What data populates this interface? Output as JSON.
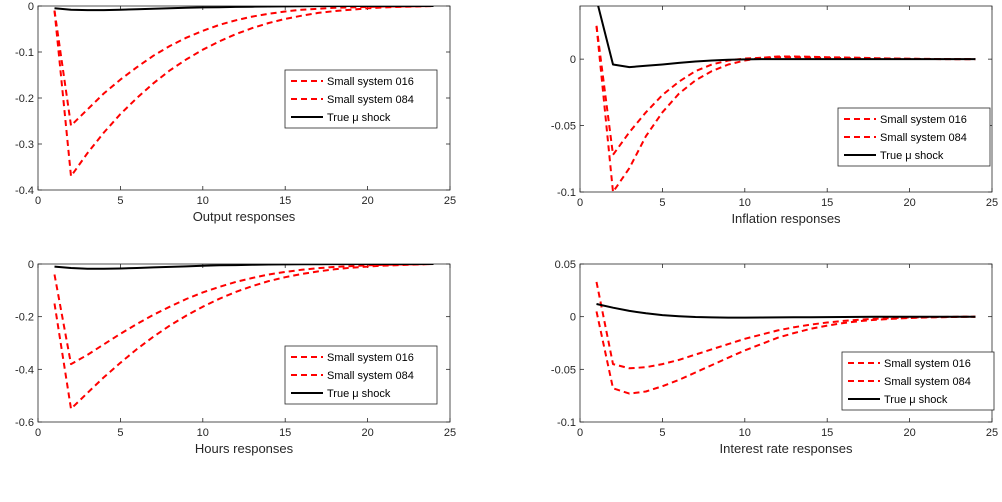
{
  "colors": {
    "red_dashed": "#ff0000",
    "black": "#000000",
    "axis": "#262626"
  },
  "chart_data": [
    {
      "type": "line",
      "xlabel": "Output responses",
      "xlim": [
        0,
        25
      ],
      "ylim": [
        -0.4,
        0
      ],
      "xticks": [
        "0",
        "5",
        "10",
        "15",
        "20",
        "25"
      ],
      "yticks": [
        "-0.4",
        "-0.3",
        "-0.2",
        "-0.1",
        "0"
      ],
      "grid": false,
      "legend_position": "middle-right",
      "series": [
        {
          "name": "Small system 016",
          "style": "dashed",
          "color": "#ff0000",
          "x": [
            1,
            2,
            3,
            4,
            5,
            6,
            7,
            8,
            9,
            10,
            11,
            12,
            13,
            14,
            15,
            16,
            17,
            18,
            19,
            20,
            21,
            22,
            23,
            24
          ],
          "y": [
            -0.01,
            -0.26,
            -0.225,
            -0.19,
            -0.16,
            -0.133,
            -0.108,
            -0.087,
            -0.069,
            -0.054,
            -0.041,
            -0.031,
            -0.023,
            -0.017,
            -0.012,
            -0.008,
            -0.006,
            -0.004,
            -0.003,
            -0.002,
            -0.001,
            -0.001,
            -0.0005,
            0
          ]
        },
        {
          "name": "Small system 084",
          "style": "dashed",
          "color": "#ff0000",
          "x": [
            1,
            2,
            3,
            4,
            5,
            6,
            7,
            8,
            9,
            10,
            11,
            12,
            13,
            14,
            15,
            16,
            17,
            18,
            19,
            20,
            21,
            22,
            23,
            24
          ],
          "y": [
            -0.01,
            -0.37,
            -0.32,
            -0.275,
            -0.235,
            -0.2,
            -0.168,
            -0.14,
            -0.116,
            -0.095,
            -0.077,
            -0.061,
            -0.048,
            -0.037,
            -0.028,
            -0.021,
            -0.015,
            -0.011,
            -0.008,
            -0.005,
            -0.003,
            -0.002,
            -0.001,
            0
          ]
        },
        {
          "name": "True μ shock",
          "style": "solid",
          "color": "#000000",
          "x": [
            1,
            2,
            3,
            4,
            5,
            6,
            7,
            8,
            9,
            10,
            11,
            12,
            13,
            14,
            15,
            16,
            17,
            18,
            19,
            20,
            21,
            22,
            23,
            24
          ],
          "y": [
            -0.005,
            -0.008,
            -0.009,
            -0.009,
            -0.008,
            -0.007,
            -0.006,
            -0.005,
            -0.004,
            -0.003,
            -0.0025,
            -0.002,
            -0.0015,
            -0.001,
            -0.0008,
            -0.0005,
            -0.0003,
            -0.0002,
            -0.0001,
            0,
            0,
            0,
            0,
            0
          ]
        }
      ]
    },
    {
      "type": "line",
      "xlabel": "Inflation responses",
      "xlim": [
        0,
        25
      ],
      "ylim": [
        -0.1,
        0.04
      ],
      "xticks": [
        "0",
        "5",
        "10",
        "15",
        "20",
        "25"
      ],
      "yticks": [
        "-0.1",
        "-0.05",
        "0"
      ],
      "grid": false,
      "legend_position": "middle-right",
      "series": [
        {
          "name": "Small system 016",
          "style": "dashed",
          "color": "#ff0000",
          "x": [
            1,
            2,
            3,
            4,
            5,
            6,
            7,
            8,
            9,
            10,
            11,
            12,
            13,
            14,
            15,
            16,
            17,
            18,
            19,
            20,
            21,
            22,
            23,
            24
          ],
          "y": [
            0.025,
            -0.072,
            -0.055,
            -0.04,
            -0.027,
            -0.017,
            -0.009,
            -0.004,
            -0.001,
            0.0005,
            0.001,
            0.0015,
            0.0015,
            0.0012,
            0.001,
            0.0008,
            0.0006,
            0.0004,
            0.0003,
            0.0002,
            0.0001,
            0,
            0,
            0
          ]
        },
        {
          "name": "Small system 084",
          "style": "dashed",
          "color": "#ff0000",
          "x": [
            1,
            2,
            3,
            4,
            5,
            6,
            7,
            8,
            9,
            10,
            11,
            12,
            13,
            14,
            15,
            16,
            17,
            18,
            19,
            20,
            21,
            22,
            23,
            24
          ],
          "y": [
            0.025,
            -0.1,
            -0.082,
            -0.058,
            -0.04,
            -0.026,
            -0.016,
            -0.009,
            -0.004,
            -0.001,
            0.001,
            0.002,
            0.002,
            0.0018,
            0.0015,
            0.0012,
            0.001,
            0.0007,
            0.0005,
            0.0003,
            0.0002,
            0.0001,
            0,
            0
          ]
        },
        {
          "name": "True μ shock",
          "style": "solid",
          "color": "#000000",
          "x": [
            1,
            2,
            3,
            4,
            5,
            6,
            7,
            8,
            9,
            10,
            11,
            12,
            13,
            14,
            15,
            16,
            17,
            18,
            19,
            20,
            21,
            22,
            23,
            24
          ],
          "y": [
            0.045,
            -0.004,
            -0.006,
            -0.005,
            -0.004,
            -0.0028,
            -0.0018,
            -0.001,
            -0.0005,
            -0.0002,
            0,
            0,
            0,
            0,
            0,
            0,
            0,
            0,
            0,
            0,
            0,
            0,
            0,
            0
          ]
        }
      ]
    },
    {
      "type": "line",
      "xlabel": "Hours responses",
      "xlim": [
        0,
        25
      ],
      "ylim": [
        -0.6,
        0
      ],
      "xticks": [
        "0",
        "5",
        "10",
        "15",
        "20",
        "25"
      ],
      "yticks": [
        "-0.6",
        "-0.4",
        "-0.2",
        "0"
      ],
      "grid": false,
      "legend_position": "middle-right",
      "series": [
        {
          "name": "Small system 016",
          "style": "dashed",
          "color": "#ff0000",
          "x": [
            1,
            2,
            3,
            4,
            5,
            6,
            7,
            8,
            9,
            10,
            11,
            12,
            13,
            14,
            15,
            16,
            17,
            18,
            19,
            20,
            21,
            22,
            23,
            24
          ],
          "y": [
            -0.04,
            -0.38,
            -0.345,
            -0.305,
            -0.265,
            -0.228,
            -0.193,
            -0.162,
            -0.133,
            -0.108,
            -0.087,
            -0.068,
            -0.053,
            -0.04,
            -0.03,
            -0.022,
            -0.016,
            -0.011,
            -0.008,
            -0.005,
            -0.003,
            -0.002,
            -0.001,
            0
          ]
        },
        {
          "name": "Small system 084",
          "style": "dashed",
          "color": "#ff0000",
          "x": [
            1,
            2,
            3,
            4,
            5,
            6,
            7,
            8,
            9,
            10,
            11,
            12,
            13,
            14,
            15,
            16,
            17,
            18,
            19,
            20,
            21,
            22,
            23,
            24
          ],
          "y": [
            -0.15,
            -0.55,
            -0.49,
            -0.43,
            -0.375,
            -0.323,
            -0.276,
            -0.234,
            -0.196,
            -0.162,
            -0.132,
            -0.106,
            -0.084,
            -0.065,
            -0.05,
            -0.038,
            -0.028,
            -0.02,
            -0.014,
            -0.01,
            -0.006,
            -0.004,
            -0.002,
            0
          ]
        },
        {
          "name": "True μ shock",
          "style": "solid",
          "color": "#000000",
          "x": [
            1,
            2,
            3,
            4,
            5,
            6,
            7,
            8,
            9,
            10,
            11,
            12,
            13,
            14,
            15,
            16,
            17,
            18,
            19,
            20,
            21,
            22,
            23,
            24
          ],
          "y": [
            -0.01,
            -0.015,
            -0.018,
            -0.018,
            -0.017,
            -0.015,
            -0.013,
            -0.011,
            -0.009,
            -0.007,
            -0.005,
            -0.004,
            -0.003,
            -0.002,
            -0.0015,
            -0.001,
            -0.0006,
            -0.0004,
            -0.0002,
            -0.0001,
            0,
            0,
            0,
            0
          ]
        }
      ]
    },
    {
      "type": "line",
      "xlabel": "Interest rate responses",
      "xlim": [
        0,
        25
      ],
      "ylim": [
        -0.1,
        0.05
      ],
      "xticks": [
        "0",
        "5",
        "10",
        "15",
        "20",
        "25"
      ],
      "yticks": [
        "-0.1",
        "-0.05",
        "0",
        "0.05"
      ],
      "grid": false,
      "legend_position": "middle-right",
      "series": [
        {
          "name": "Small system 016",
          "style": "dashed",
          "color": "#ff0000",
          "x": [
            1,
            2,
            3,
            4,
            5,
            6,
            7,
            8,
            9,
            10,
            11,
            12,
            13,
            14,
            15,
            16,
            17,
            18,
            19,
            20,
            21,
            22,
            23,
            24
          ],
          "y": [
            0.033,
            -0.045,
            -0.049,
            -0.048,
            -0.045,
            -0.041,
            -0.036,
            -0.031,
            -0.026,
            -0.021,
            -0.017,
            -0.013,
            -0.01,
            -0.0075,
            -0.0055,
            -0.004,
            -0.0028,
            -0.0019,
            -0.0013,
            -0.0008,
            -0.0005,
            -0.0003,
            -0.0001,
            0
          ]
        },
        {
          "name": "Small system 084",
          "style": "dashed",
          "color": "#ff0000",
          "x": [
            1,
            2,
            3,
            4,
            5,
            6,
            7,
            8,
            9,
            10,
            11,
            12,
            13,
            14,
            15,
            16,
            17,
            18,
            19,
            20,
            21,
            22,
            23,
            24
          ],
          "y": [
            0.005,
            -0.068,
            -0.073,
            -0.071,
            -0.066,
            -0.06,
            -0.053,
            -0.046,
            -0.039,
            -0.032,
            -0.026,
            -0.02,
            -0.0155,
            -0.0115,
            -0.0085,
            -0.006,
            -0.0042,
            -0.0029,
            -0.002,
            -0.0013,
            -0.0008,
            -0.0005,
            -0.0002,
            0
          ]
        },
        {
          "name": "True μ shock",
          "style": "solid",
          "color": "#000000",
          "x": [
            1,
            2,
            3,
            4,
            5,
            6,
            7,
            8,
            9,
            10,
            11,
            12,
            13,
            14,
            15,
            16,
            17,
            18,
            19,
            20,
            21,
            22,
            23,
            24
          ],
          "y": [
            0.012,
            0.0085,
            0.0055,
            0.0032,
            0.0015,
            0.0004,
            -0.0003,
            -0.0007,
            -0.0009,
            -0.0009,
            -0.0008,
            -0.0007,
            -0.0006,
            -0.0005,
            -0.0004,
            -0.0003,
            -0.0002,
            -0.0001,
            -0.0001,
            0,
            0,
            0,
            0,
            0
          ]
        }
      ]
    }
  ]
}
